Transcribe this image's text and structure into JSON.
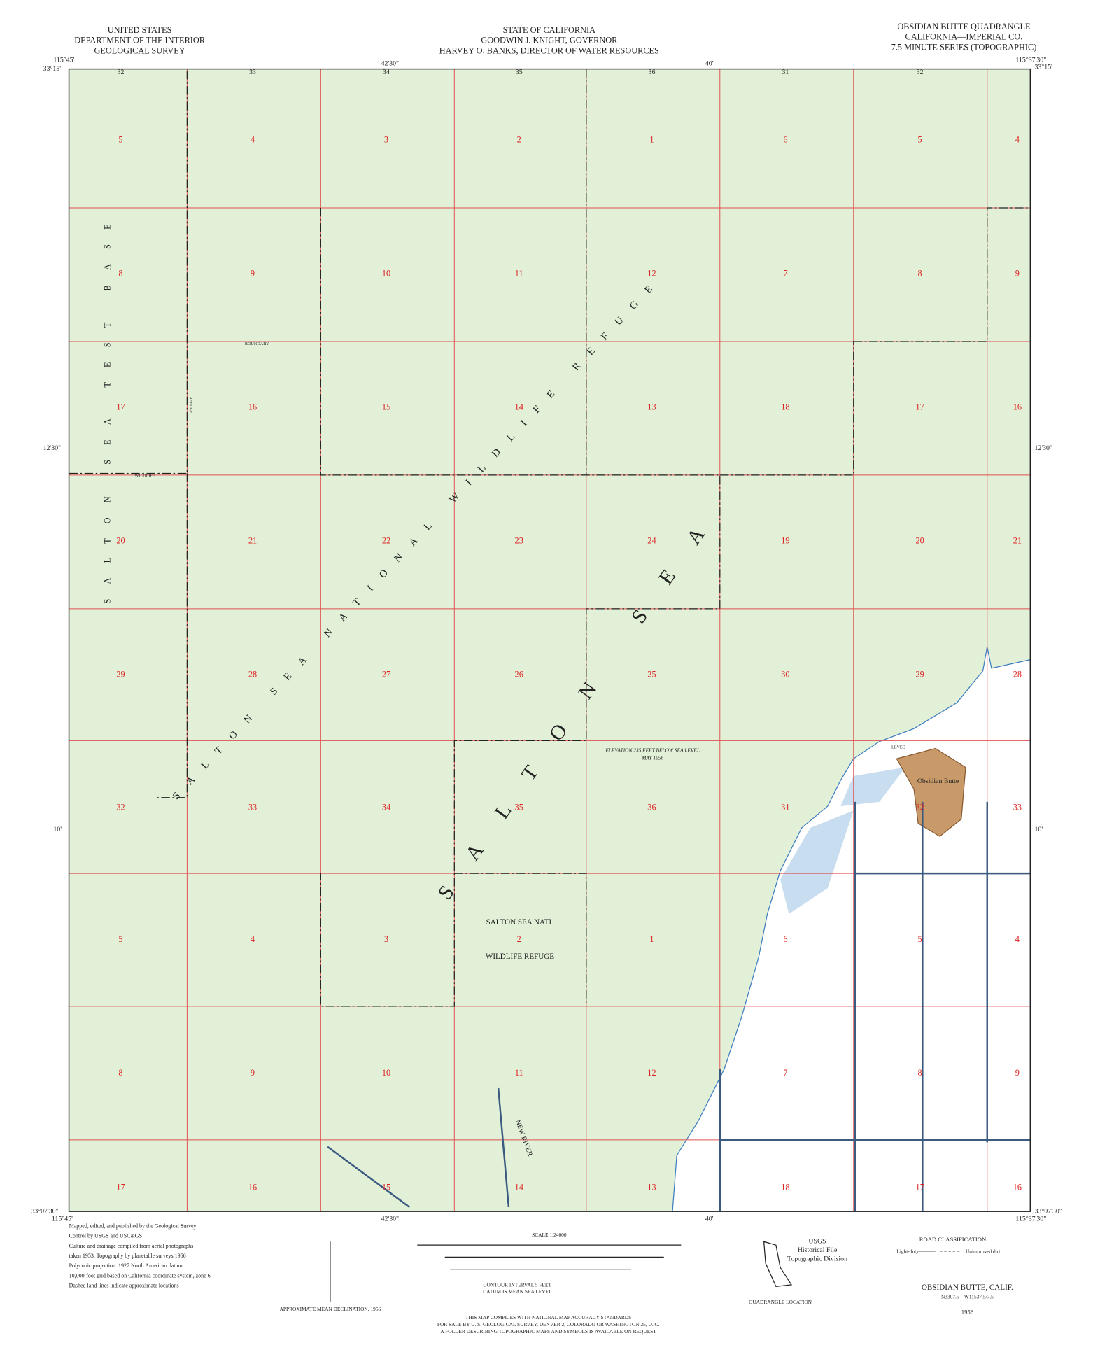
{
  "header": {
    "left": [
      "UNITED STATES",
      "DEPARTMENT OF THE INTERIOR",
      "GEOLOGICAL SURVEY"
    ],
    "center": [
      "STATE OF CALIFORNIA",
      "GOODWIN J. KNIGHT, GOVERNOR",
      "HARVEY O. BANKS, DIRECTOR OF WATER RESOURCES"
    ],
    "right": [
      "OBSIDIAN BUTTE QUADRANGLE",
      "CALIFORNIA—IMPERIAL CO.",
      "7.5 MINUTE SERIES (TOPOGRAPHIC)"
    ]
  },
  "coords": {
    "nw_lon": "115°45'",
    "nw_lat": "33°15'",
    "top_mid1": "42'30\"",
    "top_mid2": "40'",
    "ne_lon": "115°37'30\"",
    "ne_lat": "33°15'",
    "lat_mid1": "12'30\"",
    "lat_mid2": "10'",
    "sw_lat": "33°07'30\"",
    "sw_lon": "115°45'",
    "bottom_mid1": "42'30\"",
    "bottom_mid2": "40'",
    "se_lon": "115°37'30\"",
    "se_lat": "33°07'30\""
  },
  "top_sections": [
    "32",
    "33",
    "34",
    "35",
    "36",
    "31",
    "32"
  ],
  "sections": [
    [
      "5",
      "4",
      "3",
      "2",
      "1",
      "6",
      "5",
      "4"
    ],
    [
      "8",
      "9",
      "10",
      "11",
      "12",
      "7",
      "8",
      "9"
    ],
    [
      "17",
      "16",
      "15",
      "14",
      "13",
      "18",
      "17",
      "16"
    ],
    [
      "20",
      "21",
      "22",
      "23",
      "24",
      "19",
      "20",
      "21"
    ],
    [
      "29",
      "28",
      "27",
      "26",
      "25",
      "30",
      "29",
      "28"
    ],
    [
      "32",
      "33",
      "34",
      "35",
      "36",
      "31",
      "32",
      "33"
    ],
    [
      "5",
      "4",
      "3",
      "2",
      "1",
      "6",
      "5",
      "4"
    ],
    [
      "8",
      "9",
      "10",
      "11",
      "12",
      "7",
      "8",
      "9"
    ],
    [
      "17",
      "16",
      "15",
      "14",
      "13",
      "18",
      "17",
      "16"
    ]
  ],
  "labels": {
    "refuge": "SALTON SEA NATIONAL WILDLIFE REFUGE",
    "sea": "SALTON SEA",
    "test_base": "SALTON SEA TEST BASE",
    "natl": "SALTON SEA NATL",
    "wildlife_refuge": "WILDLIFE REFUGE",
    "elevation": "ELEVATION 235 FEET BELOW SEA LEVEL",
    "elevation_date": "MAY 1956",
    "butte": "Obsidian Butte",
    "river": "NEW RIVER",
    "boundary": "BOUNDARY",
    "wildlife": "WILDLIFE",
    "refuge_v": "REFUGE",
    "levee": "LEVEE"
  },
  "footer": {
    "notes": [
      "Mapped, edited, and published by the Geological Survey",
      "Control by USGS and USC&GS",
      "Culture and drainage compiled from aerial photographs",
      "taken 1953. Topography by planetable surveys 1956",
      "Polyconic projection. 1927 North American datum",
      "10,000-foot grid based on California coordinate system, zone 6",
      "Dashed land lines indicate approximate locations"
    ],
    "scale": "SCALE 1:24000",
    "contour": "CONTOUR INTERVAL 5 FEET",
    "datum": "DATUM IS MEAN SEA LEVEL",
    "standards": [
      "THIS MAP COMPLIES WITH NATIONAL MAP ACCURACY STANDARDS",
      "FOR SALE BY U. S. GEOLOGICAL SURVEY, DENVER 2, COLORADO OR WASHINGTON 25, D. C.",
      "A FOLDER DESCRIBING TOPOGRAPHIC MAPS AND SYMBOLS IS AVAILABLE ON REQUEST"
    ],
    "declination": "APPROXIMATE MEAN DECLINATION, 1956",
    "location": "QUADRANGLE LOCATION",
    "stamp": [
      "USGS",
      "Historical File",
      "Topographic Division"
    ],
    "road_title": "ROAD CLASSIFICATION",
    "road_light": "Light-duty",
    "road_dirt": "Unimproved dirt",
    "name": "OBSIDIAN BUTTE, CALIF.",
    "code": "N3307.5—W11537.5/7.5",
    "year": "1956"
  }
}
